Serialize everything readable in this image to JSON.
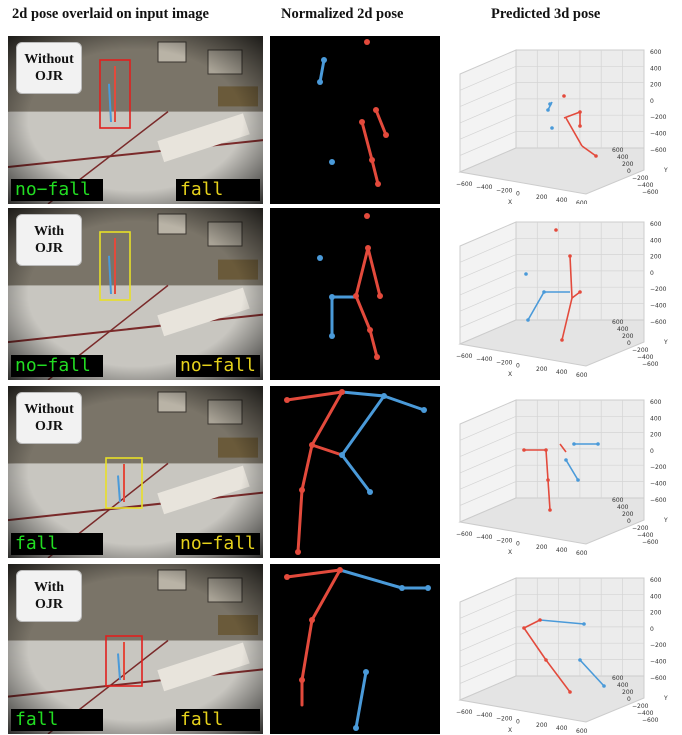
{
  "headers": {
    "col1": "2d pose overlaid on input image",
    "col2": "Normalized 2d pose",
    "col3": "Predicted 3d pose"
  },
  "colors": {
    "left_limb": "#e34a3c",
    "right_limb": "#4a9ad9",
    "green_text": "#22dd22",
    "yellow_text": "#e6d21c",
    "red_box": "#e0201e",
    "yellow_box": "#e8e028"
  },
  "rows": [
    {
      "label_line1": "Without",
      "label_line2": "OJR",
      "left_pred": "no−fall",
      "left_color": "green",
      "right_pred": "fall",
      "right_color": "yellow",
      "box": "red"
    },
    {
      "label_line1": "With",
      "label_line2": "OJR",
      "left_pred": "no−fall",
      "left_color": "green",
      "right_pred": "no−fall",
      "right_color": "yellow",
      "box": "yellow"
    },
    {
      "label_line1": "Without",
      "label_line2": "OJR",
      "left_pred": "fall",
      "left_color": "green",
      "right_pred": "no−fall",
      "right_color": "yellow",
      "box": "yellow"
    },
    {
      "label_line1": "With",
      "label_line2": "OJR",
      "left_pred": "fall",
      "left_color": "green",
      "right_pred": "fall",
      "right_color": "yellow",
      "box": "red"
    }
  ],
  "axes3d": {
    "z_ticks": [
      "600",
      "400",
      "200",
      "0",
      "−200",
      "−400",
      "−600"
    ],
    "x_ticks": [
      "−600",
      "−400",
      "−200",
      "0",
      "200",
      "400",
      "600"
    ],
    "y_ticks": [
      "600",
      "400",
      "200",
      "0",
      "−200",
      "−400",
      "−600"
    ],
    "x_label": "X",
    "y_label": "Y"
  }
}
